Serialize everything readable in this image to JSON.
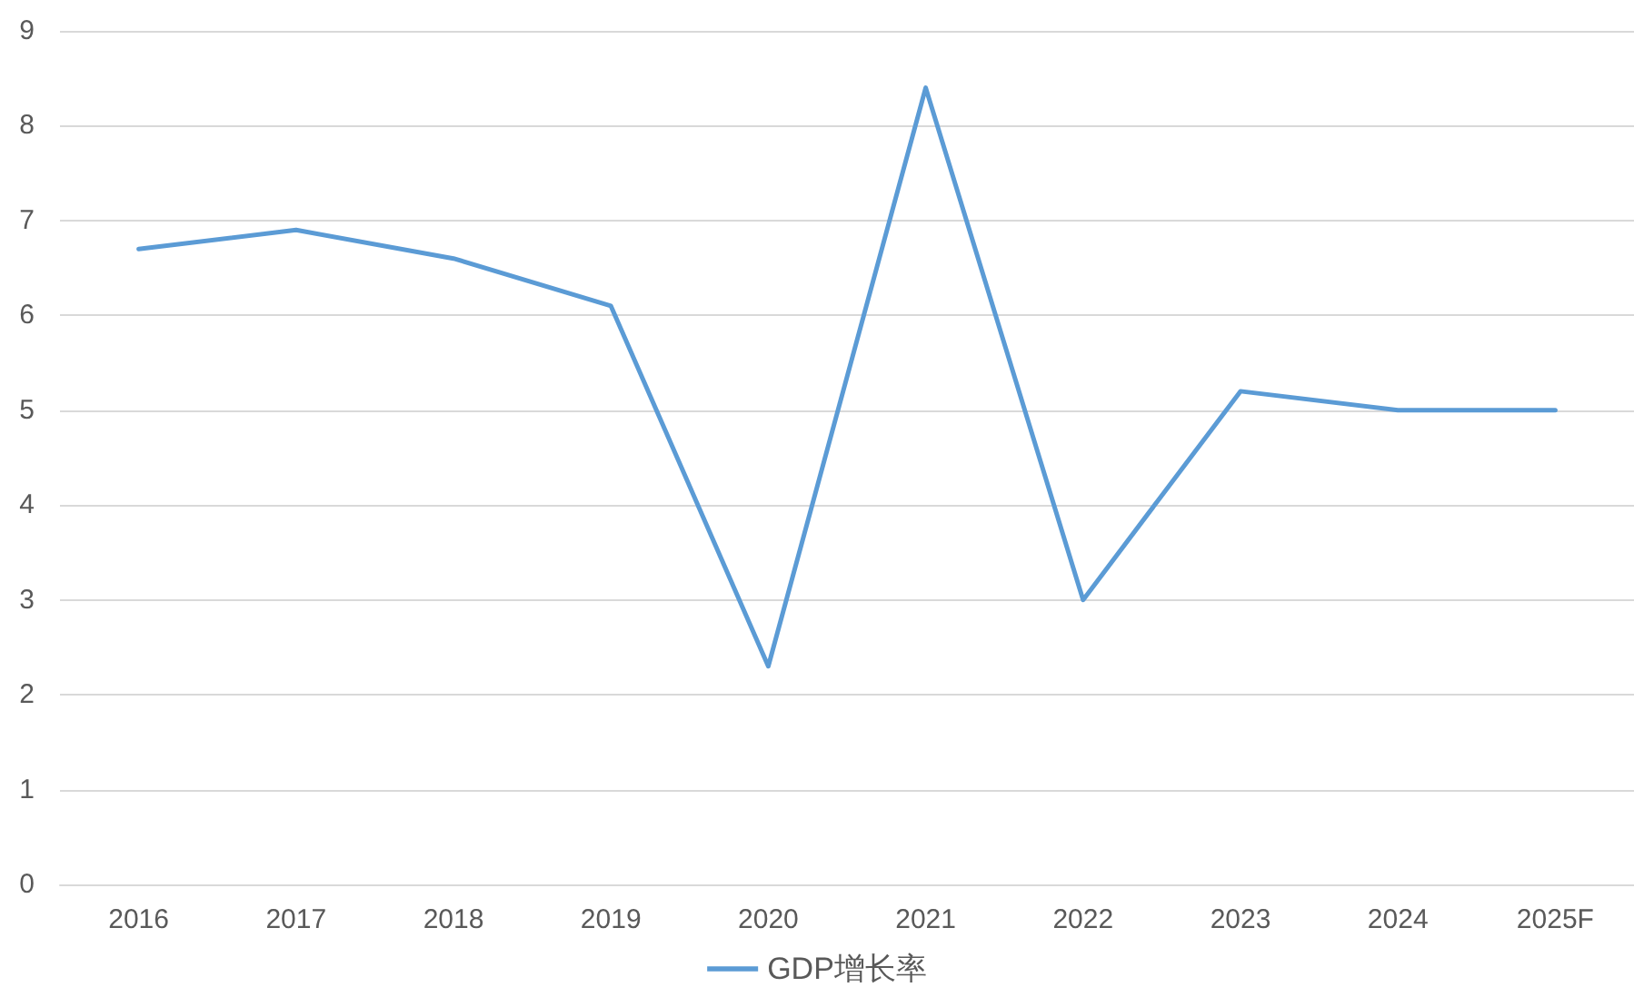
{
  "chart_data": {
    "type": "line",
    "categories": [
      "2016",
      "2017",
      "2018",
      "2019",
      "2020",
      "2021",
      "2022",
      "2023",
      "2024",
      "2025F"
    ],
    "series": [
      {
        "name": "GDP增长率",
        "color": "#5b9bd5",
        "values": [
          6.7,
          6.9,
          6.6,
          6.1,
          2.3,
          8.4,
          3.0,
          5.2,
          5.0,
          5.0
        ]
      }
    ],
    "ylim": [
      0,
      9
    ],
    "yticks": [
      0,
      1,
      2,
      3,
      4,
      5,
      6,
      7,
      8,
      9
    ],
    "grid": "y",
    "legend": "bottom",
    "marker": "none"
  }
}
